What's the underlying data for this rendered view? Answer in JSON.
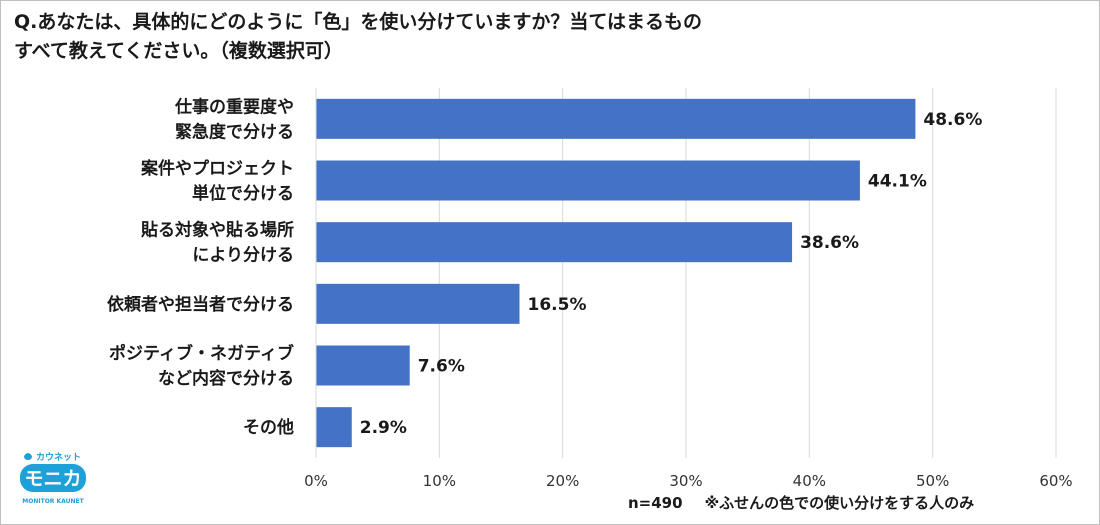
{
  "title": {
    "line1": "Q.あなたは、具体的にどのように「色」を使い分けていますか？当てはまるもの",
    "line2": "すべて教えてください。（複数選択可）"
  },
  "chart_data": {
    "type": "bar",
    "orientation": "horizontal",
    "categories": [
      [
        "仕事の重要度や",
        "緊急度で分ける"
      ],
      [
        "案件やプロジェクト",
        "単位で分ける"
      ],
      [
        "貼る対象や貼る場所",
        "により分ける"
      ],
      [
        "依頼者や担当者で分ける"
      ],
      [
        "ポジティブ・ネガティブ",
        "など内容で分ける"
      ],
      [
        "その他"
      ]
    ],
    "values": [
      48.6,
      44.1,
      38.6,
      16.5,
      7.6,
      2.9
    ],
    "value_labels": [
      "48.6%",
      "44.1%",
      "38.6%",
      "16.5%",
      "7.6%",
      "2.9%"
    ],
    "xlim": [
      0,
      60
    ],
    "ticks": [
      0,
      10,
      20,
      30,
      40,
      50,
      60
    ],
    "tick_labels": [
      "0%",
      "10%",
      "20%",
      "30%",
      "40%",
      "50%",
      "60%"
    ],
    "grid": true,
    "bar_color": "#4472c4",
    "grid_color": "#d9d9d9"
  },
  "footer": {
    "sample": "n=490",
    "note": "※ふせんの色での使い分けをする人のみ"
  },
  "logo": {
    "top_text": "カウネット",
    "main_text": "モニカ",
    "bottom_text": "MONITOR KAUNET",
    "color": "#1ea0d8"
  }
}
